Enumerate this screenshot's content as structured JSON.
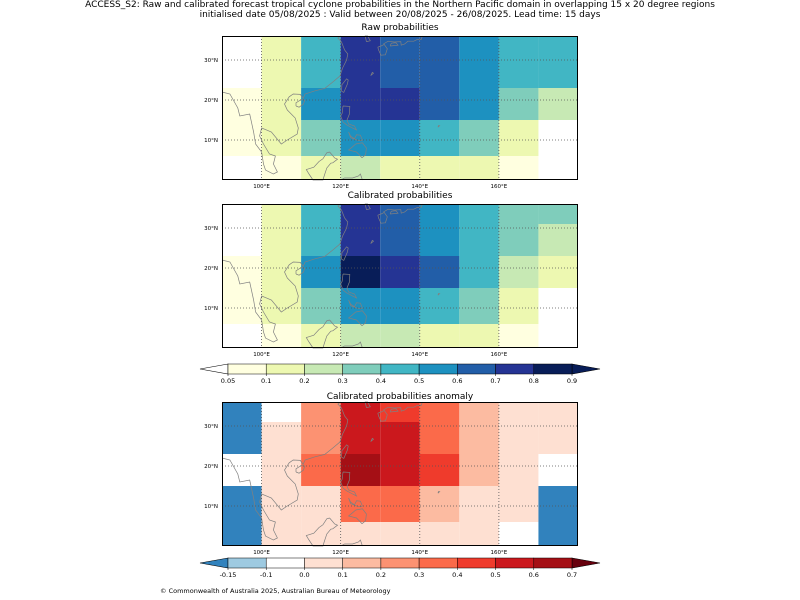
{
  "header": {
    "title_line1": "ACCESS_S2: Raw and calibrated forecast tropical cyclone probabilities in the Northern Pacific domain in overlapping 15 x 20 degree regions",
    "title_line2": "initialised date 05/08/2025 :  Valid between 20/08/2025 - 26/08/2025. Lead time: 15 days"
  },
  "map_extent": {
    "lon": [
      90,
      180
    ],
    "lat": [
      0,
      36
    ]
  },
  "lon_ticks": [
    "100°E",
    "120°E",
    "140°E",
    "160°E"
  ],
  "lat_ticks": [
    "30°N",
    "20°N",
    "10°N"
  ],
  "col_edges": [
    90,
    100,
    110,
    120,
    130,
    140,
    150,
    160,
    170,
    180
  ],
  "row_edges": [
    36,
    31,
    23,
    15,
    6,
    0
  ],
  "panels": [
    {
      "title": "Raw probabilities",
      "colormap": "prob",
      "grid": [
        [
          null,
          0.1,
          0.4,
          0.7,
          0.6,
          0.6,
          0.5,
          0.4,
          0.4
        ],
        [
          null,
          0.15,
          0.45,
          0.75,
          0.65,
          0.65,
          0.5,
          0.4,
          0.4
        ],
        [
          0.05,
          0.15,
          0.55,
          0.75,
          0.75,
          0.65,
          0.5,
          0.3,
          0.2
        ],
        [
          0.05,
          0.1,
          0.3,
          0.5,
          0.5,
          0.4,
          0.3,
          0.1,
          null
        ],
        [
          null,
          0.05,
          0.1,
          0.2,
          0.15,
          0.15,
          0.1,
          0.05,
          null
        ]
      ]
    },
    {
      "title": "Calibrated probabilities",
      "colormap": "prob",
      "grid": [
        [
          null,
          0.1,
          0.4,
          0.7,
          0.6,
          0.5,
          0.4,
          0.3,
          0.3
        ],
        [
          null,
          0.15,
          0.45,
          0.75,
          0.65,
          0.55,
          0.4,
          0.3,
          0.2
        ],
        [
          0.05,
          0.15,
          0.55,
          0.85,
          0.75,
          0.65,
          0.45,
          0.2,
          0.1
        ],
        [
          0.05,
          0.1,
          0.3,
          0.55,
          0.55,
          0.4,
          0.3,
          0.15,
          null
        ],
        [
          null,
          0.05,
          0.1,
          0.25,
          0.2,
          0.15,
          0.15,
          0.05,
          null
        ]
      ]
    },
    {
      "title": "Calibrated probabilities anomaly",
      "colormap": "anom",
      "grid": [
        [
          -0.2,
          -0.1,
          0.2,
          0.55,
          0.45,
          0.3,
          0.15,
          0.05,
          0.05
        ],
        [
          -0.2,
          0.0,
          0.25,
          0.55,
          0.5,
          0.35,
          0.15,
          0.05,
          0.0
        ],
        [
          -0.1,
          0.0,
          0.3,
          0.65,
          0.55,
          0.4,
          0.15,
          0.0,
          -0.1
        ],
        [
          -0.2,
          0.0,
          0.05,
          0.3,
          0.3,
          0.15,
          0.05,
          0.0,
          -0.2
        ],
        [
          -0.2,
          0.0,
          0.0,
          0.05,
          0.05,
          0.0,
          0.0,
          -0.1,
          -0.2
        ]
      ]
    }
  ],
  "colorbar_prob": {
    "bounds": [
      0.05,
      0.1,
      0.2,
      0.3,
      0.4,
      0.5,
      0.6,
      0.7,
      0.8,
      0.9
    ],
    "labels": [
      "0.05",
      "0.1",
      "0.2",
      "0.3",
      "0.4",
      "0.5",
      "0.6",
      "0.7",
      "0.8",
      "0.9"
    ],
    "colors": [
      "#ffffe0",
      "#edf8b1",
      "#c7e9b4",
      "#7fcdbb",
      "#41b6c4",
      "#1d91c0",
      "#225ea8",
      "#253494",
      "#081d58"
    ],
    "under_color": "#ffffff",
    "over_color": "#081d58"
  },
  "colorbar_anom": {
    "bounds": [
      -0.15,
      -0.1,
      0.0,
      0.1,
      0.2,
      0.3,
      0.4,
      0.5,
      0.6,
      0.7
    ],
    "labels": [
      "-0.15",
      "-0.1",
      "0.0",
      "0.1",
      "0.2",
      "0.3",
      "0.4",
      "0.5",
      "0.6",
      "0.7"
    ],
    "colors": [
      "#9ecae1",
      "#ffffff",
      "#fee0d2",
      "#fcbba1",
      "#fc9272",
      "#fb6a4a",
      "#ef3b2c",
      "#cb181d",
      "#a50f15"
    ],
    "under_color": "#3182bd",
    "over_color": "#67000d"
  },
  "colors": {
    "coast": "#808080",
    "grid": "#555555",
    "frame": "#000000"
  },
  "footer": "© Commonwealth of Australia 2025, Australian Bureau of Meteorology"
}
